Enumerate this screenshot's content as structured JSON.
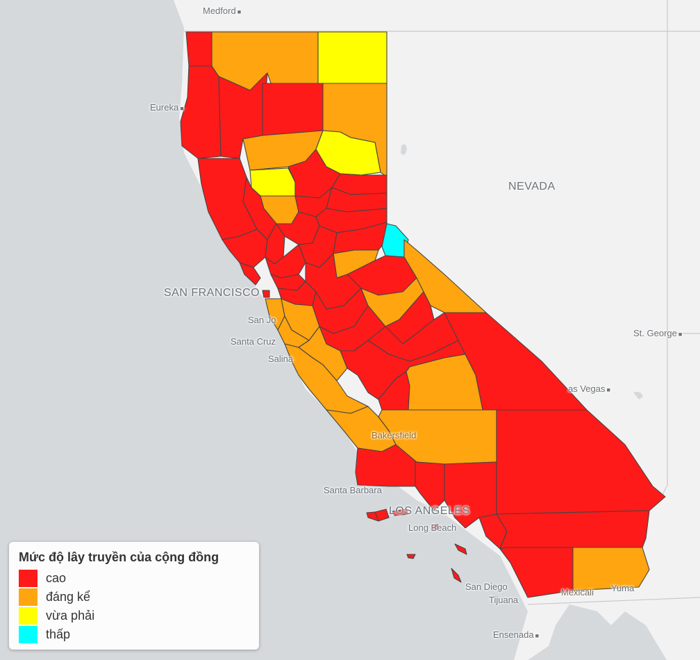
{
  "map": {
    "colors": {
      "background_sea": "#d5d9dc",
      "land": "#f2f2f2",
      "high": "#ff1a1a",
      "substantial": "#ffa50f",
      "moderate": "#ffff00",
      "low": "#00ffff",
      "border": "#555555"
    },
    "places": {
      "medford": "Medford",
      "eureka": "Eureka",
      "nevada": "NEVADA",
      "san_francisco": "SAN FRANCISCO",
      "san_jose": "San Jo",
      "santa_cruz": "Santa Cruz",
      "salinas": "Salina",
      "st_george": "St. George",
      "las_vegas": "as Vegas",
      "bakersfield": "Bakersfield",
      "santa_barbara": "Santa Barbara",
      "los_angeles": "LOS ANGELES",
      "long_beach": "Long Beach",
      "san_diego": "San Diego",
      "tijuana": "Tijuana",
      "mexicali": "Mexicali",
      "yuma": "Yuma",
      "ensenada": "Ensenada"
    }
  },
  "legend": {
    "title": "Mức độ lây truyền của cộng đồng",
    "items": [
      {
        "label": "cao",
        "color": "#ff1a1a"
      },
      {
        "label": "đáng kể",
        "color": "#ffa50f"
      },
      {
        "label": "vừa phải",
        "color": "#ffff00"
      },
      {
        "label": "thấp",
        "color": "#00ffff"
      }
    ]
  }
}
